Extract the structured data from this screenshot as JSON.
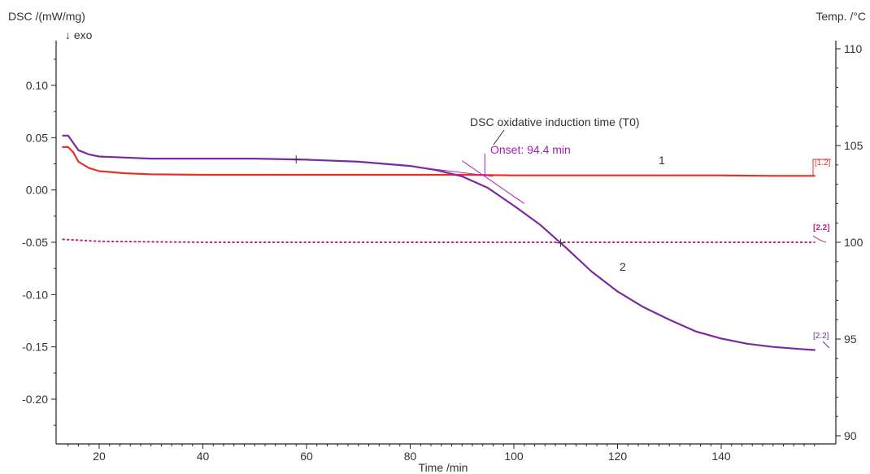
{
  "chart_data": {
    "type": "line",
    "title": "",
    "xlabel": "Time /min",
    "ylabel_left": "DSC /(mW/mg)",
    "ylabel_left_sub": "↓ exo",
    "ylabel_right": "Temp. /°C",
    "xlim": [
      12,
      159
    ],
    "ylim_left": [
      -0.24,
      0.145
    ],
    "ylim_right": [
      89.8,
      110.6
    ],
    "x_ticks": [
      20,
      40,
      60,
      80,
      100,
      120,
      140
    ],
    "y_left_ticks": [
      0.1,
      0.05,
      0.0,
      -0.05,
      -0.1,
      -0.15,
      -0.2
    ],
    "y_left_tick_labels": [
      "0.10",
      "0.05",
      "0.00",
      "-0.05",
      "-0.10",
      "-0.15",
      "-0.20"
    ],
    "y_right_ticks": [
      110,
      105,
      100,
      95,
      90
    ],
    "y_right_tick_labels": [
      "110",
      "105",
      "100",
      "95",
      "90"
    ],
    "grid": false,
    "colors": {
      "red": "#e8302a",
      "purple": "#7a2a9e",
      "magenta": "#c02080",
      "annot_purple": "#a020b0"
    },
    "series": [
      {
        "name": "1",
        "color": "#e8302a",
        "axis": "left",
        "style": "solid",
        "x": [
          13,
          14,
          15,
          16,
          18,
          20,
          25,
          30,
          40,
          50,
          60,
          70,
          80,
          90,
          100,
          110,
          120,
          130,
          140,
          150,
          158
        ],
        "y": [
          0.041,
          0.041,
          0.036,
          0.027,
          0.021,
          0.018,
          0.016,
          0.015,
          0.0145,
          0.0145,
          0.0145,
          0.0145,
          0.0145,
          0.0145,
          0.014,
          0.014,
          0.014,
          0.014,
          0.014,
          0.0135,
          0.0135
        ]
      },
      {
        "name": "2",
        "color": "#7a2a9e",
        "axis": "left",
        "style": "solid",
        "x": [
          13,
          14,
          15,
          16,
          18,
          20,
          25,
          30,
          40,
          50,
          60,
          70,
          75,
          80,
          85,
          90,
          95,
          100,
          105,
          110,
          115,
          120,
          125,
          130,
          135,
          140,
          145,
          150,
          155,
          158
        ],
        "y": [
          0.052,
          0.052,
          0.045,
          0.038,
          0.034,
          0.032,
          0.031,
          0.03,
          0.03,
          0.03,
          0.029,
          0.027,
          0.025,
          0.023,
          0.019,
          0.013,
          0.002,
          -0.015,
          -0.033,
          -0.055,
          -0.078,
          -0.097,
          -0.112,
          -0.124,
          -0.135,
          -0.142,
          -0.147,
          -0.15,
          -0.152,
          -0.153
        ]
      },
      {
        "name": "temperature",
        "color": "#c02080",
        "axis": "right",
        "style": "dotted",
        "x": [
          13,
          20,
          40,
          60,
          80,
          100,
          120,
          140,
          158
        ],
        "y": [
          100.15,
          100.05,
          100.0,
          100.0,
          100.0,
          100.0,
          100.0,
          100.0,
          100.0
        ]
      }
    ],
    "annotations": {
      "induction_label": "DSC oxidative induction time (T0)",
      "onset_label": "Onset: 94.4 min",
      "onset_x": 94.4,
      "curve1_label": "1",
      "curve2_label": "2",
      "end_label_red": "[1.2]",
      "end_label_temp": "[2.2]",
      "end_label_purple": "[2.2]",
      "marker_x": [
        58,
        109
      ]
    }
  }
}
